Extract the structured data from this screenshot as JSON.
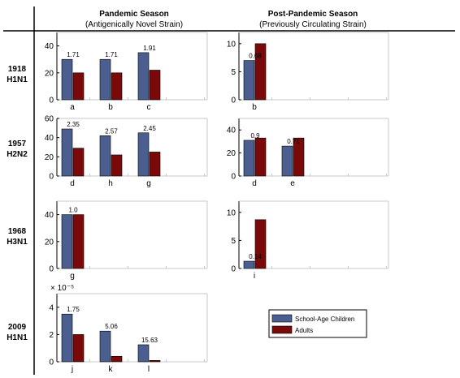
{
  "columns": [
    {
      "title": "Pandemic Season",
      "subtitle": "(Antigenically Novel Strain)"
    },
    {
      "title": "Post-Pandemic Season",
      "subtitle": "(Previously Circulating Strain)"
    }
  ],
  "rows": [
    {
      "year": "1918",
      "strain": "H1N1"
    },
    {
      "year": "1957",
      "strain": "H2N2"
    },
    {
      "year": "1968",
      "strain": "H3N1"
    },
    {
      "year": "2009",
      "strain": "H1N1"
    }
  ],
  "legend": {
    "items": [
      {
        "label": "School-Age Children",
        "color": "#4a5f8f"
      },
      {
        "label": "Adults",
        "color": "#7a0a0a"
      }
    ]
  },
  "chart_data": [
    {
      "type": "bar",
      "panel": "1918 pandemic",
      "categories": [
        "a",
        "b",
        "c"
      ],
      "series": [
        {
          "name": "School-Age Children",
          "values": [
            30,
            30,
            35
          ]
        },
        {
          "name": "Adults",
          "values": [
            20,
            20,
            22
          ]
        }
      ],
      "data_labels": [
        "1.71",
        "1.71",
        "1.91"
      ],
      "ylim": [
        0,
        50
      ],
      "yticks": [
        0,
        20,
        40
      ]
    },
    {
      "type": "bar",
      "panel": "1918 post-pandemic",
      "categories": [
        "b"
      ],
      "series": [
        {
          "name": "School-Age Children",
          "values": [
            7
          ]
        },
        {
          "name": "Adults",
          "values": [
            10
          ]
        }
      ],
      "data_labels": [
        "0.68"
      ],
      "ylim": [
        0,
        12
      ],
      "yticks": [
        0,
        5,
        10
      ]
    },
    {
      "type": "bar",
      "panel": "1957 pandemic",
      "categories": [
        "d",
        "h",
        "g"
      ],
      "series": [
        {
          "name": "School-Age Children",
          "values": [
            49,
            42,
            45
          ]
        },
        {
          "name": "Adults",
          "values": [
            29,
            22,
            25
          ]
        }
      ],
      "data_labels": [
        "2.35",
        "2.57",
        "2.45"
      ],
      "ylim": [
        0,
        60
      ],
      "yticks": [
        0,
        20,
        40,
        60
      ]
    },
    {
      "type": "bar",
      "panel": "1957 post-pandemic",
      "categories": [
        "d",
        "e"
      ],
      "series": [
        {
          "name": "School-Age Children",
          "values": [
            31,
            26
          ]
        },
        {
          "name": "Adults",
          "values": [
            33,
            33
          ]
        }
      ],
      "data_labels": [
        "0.9",
        "0.71"
      ],
      "ylim": [
        0,
        50
      ],
      "yticks": [
        0,
        20,
        40
      ]
    },
    {
      "type": "bar",
      "panel": "1968 pandemic",
      "categories": [
        "g"
      ],
      "series": [
        {
          "name": "School-Age Children",
          "values": [
            40
          ]
        },
        {
          "name": "Adults",
          "values": [
            40
          ]
        }
      ],
      "data_labels": [
        "1.0"
      ],
      "ylim": [
        0,
        50
      ],
      "yticks": [
        0,
        20,
        40
      ]
    },
    {
      "type": "bar",
      "panel": "1968 post-pandemic",
      "categories": [
        "i"
      ],
      "series": [
        {
          "name": "School-Age Children",
          "values": [
            1.3
          ]
        },
        {
          "name": "Adults",
          "values": [
            8.7
          ]
        }
      ],
      "data_labels": [
        "0.14"
      ],
      "ylim": [
        0,
        12
      ],
      "yticks": [
        0,
        5,
        10
      ]
    },
    {
      "type": "bar",
      "panel": "2009 pandemic",
      "categories": [
        "j",
        "k",
        "l"
      ],
      "series": [
        {
          "name": "School-Age Children",
          "values": [
            3.5,
            2.25,
            1.25
          ]
        },
        {
          "name": "Adults",
          "values": [
            2.0,
            0.4,
            0.1
          ]
        }
      ],
      "data_labels": [
        "1.75",
        "5.06",
        "15.63"
      ],
      "ylim": [
        0,
        5
      ],
      "yticks": [
        0,
        2,
        4
      ],
      "exponent_label": "× 10⁻⁵"
    }
  ]
}
